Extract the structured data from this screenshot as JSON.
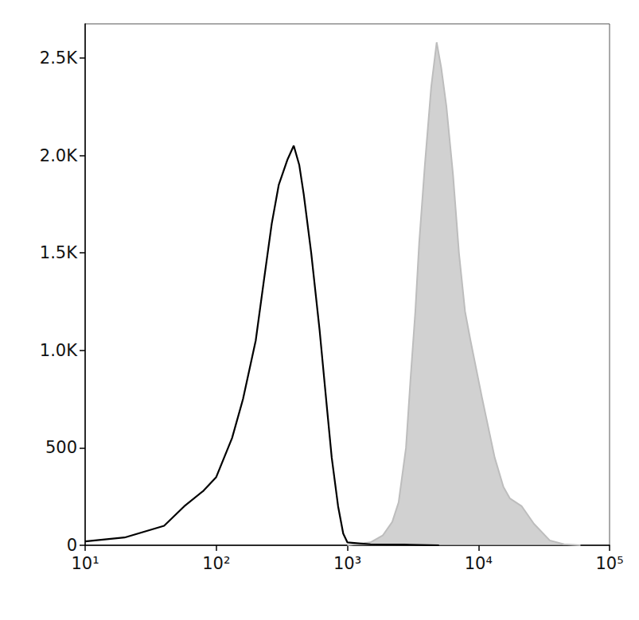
{
  "chart_data": {
    "type": "line",
    "log": "x",
    "xlim": [
      10,
      100000
    ],
    "xticks": [
      {
        "value": 10,
        "label": "10¹"
      },
      {
        "value": 100,
        "label": "10²"
      },
      {
        "value": 1000,
        "label": "10³"
      },
      {
        "value": 10000,
        "label": "10⁴"
      },
      {
        "value": 100000,
        "label": "10⁵"
      }
    ],
    "ylim": [
      0,
      2675
    ],
    "yticks": [
      0,
      500,
      {
        "value": 1000,
        "label": "1.0K"
      },
      {
        "value": 1500,
        "label": "1.5K"
      },
      {
        "value": 2000,
        "label": "2.0K"
      },
      {
        "value": 2500,
        "label": "2.5K"
      }
    ],
    "grid": false,
    "series": [
      {
        "type": "line",
        "color": "#000000",
        "x": [
          10,
          20,
          40,
          57,
          80,
          100,
          132,
          160,
          200,
          230,
          265,
          300,
          350,
          390,
          430,
          465,
          530,
          615,
          700,
          760,
          850,
          930,
          1000,
          1500,
          3000,
          5000
        ],
        "values": [
          20,
          40,
          100,
          200,
          280,
          350,
          550,
          750,
          1050,
          1350,
          1650,
          1850,
          1980,
          2050,
          1950,
          1800,
          1500,
          1100,
          700,
          450,
          200,
          60,
          15,
          5,
          3,
          0
        ]
      },
      {
        "type": "area",
        "color": "#bdbdbd",
        "x": [
          1000,
          1500,
          1860,
          2200,
          2460,
          2800,
          3030,
          3300,
          3530,
          3900,
          4360,
          4800,
          5200,
          5700,
          6400,
          7100,
          7900,
          8700,
          10700,
          13300,
          15500,
          17400,
          21400,
          26500,
          35000,
          45000,
          60000
        ],
        "values": [
          0,
          15,
          50,
          120,
          220,
          500,
          850,
          1200,
          1550,
          1950,
          2350,
          2580,
          2450,
          2250,
          1900,
          1500,
          1200,
          1050,
          750,
          450,
          300,
          240,
          200,
          110,
          25,
          5,
          0
        ]
      }
    ]
  }
}
